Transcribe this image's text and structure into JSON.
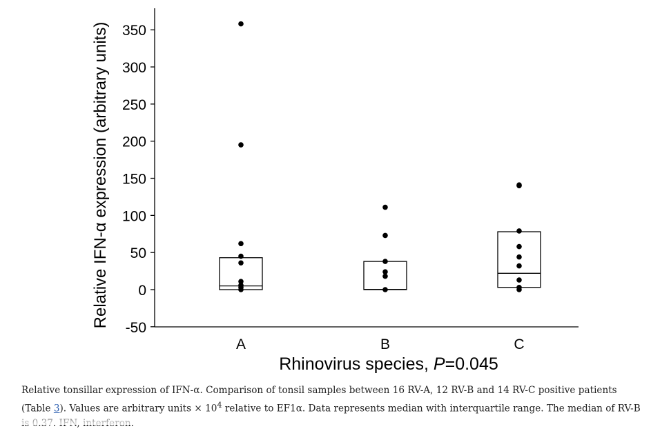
{
  "chart_data": {
    "type": "scatter",
    "title": "",
    "xlabel": "Rhinovirus species, ",
    "xlabel_italic": "P",
    "xlabel_suffix": "=0.045",
    "ylabel": "Relative IFN-α expression (arbitrary units)",
    "ylim": [
      -50,
      375
    ],
    "yticks": [
      -50,
      0,
      50,
      100,
      150,
      200,
      250,
      300,
      350
    ],
    "ytick_labels": [
      "-50",
      "0",
      "50",
      "100",
      "150",
      "200",
      "250",
      "300",
      "350"
    ],
    "categories": [
      "A",
      "B",
      "C"
    ],
    "groups": [
      {
        "category": "A",
        "points": [
          358,
          195,
          62,
          45,
          36,
          11,
          6,
          3,
          0
        ],
        "median": 5,
        "q1": 0,
        "q3": 43
      },
      {
        "category": "B",
        "points": [
          111,
          73,
          38,
          24,
          18,
          0
        ],
        "median": 0.37,
        "q1": 0,
        "q3": 38
      },
      {
        "category": "C",
        "points": [
          141,
          140,
          79,
          58,
          44,
          32,
          13,
          3,
          0
        ],
        "median": 22,
        "q1": 3,
        "q3": 78
      }
    ],
    "grid": false,
    "legend": "none",
    "point_color": "#000000",
    "box_edge_color": "#000000"
  },
  "caption": {
    "text_before_link": "Relative tonsillar expression of IFN-α. Comparison of tonsil samples between 16 RV-A, 12 RV-B and 14 RV-C positive patients (Table ",
    "link_text": "3",
    "text_after_link": "). Values are arbitrary units × 10",
    "superscript": "4",
    "text_end": " relative to EF1α. Data represents median with interquartile range. The median of RV-B is 0.37. IFN, interferon."
  }
}
